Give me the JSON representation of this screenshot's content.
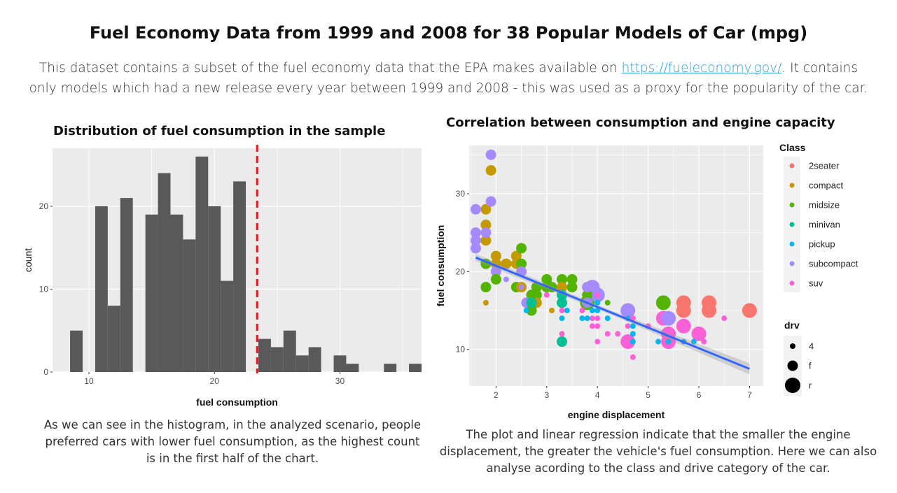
{
  "page": {
    "title": "Fuel Economy Data from 1999 and 2008 for 38 Popular Models of Car (mpg)",
    "intro_before_link": "This dataset contains a subset of the fuel economy data that the EPA makes available on ",
    "intro_link": "https://fueleconomy.gov/",
    "intro_after_link": ". It contains only models which had a new release every year between 1999 and 2008 - this was used as a proxy for the popularity of the car."
  },
  "histogram": {
    "caption": "As we can see in the histogram, in the analyzed scenario, people preferred cars with lower fuel consumption, as the highest count is in the first half of the chart."
  },
  "scatter": {
    "caption": "The plot and linear regression indicate that the smaller the engine displacement, the greater the vehicle's fuel consumption. Here we can also analyse acording to the class and drive category of the car."
  },
  "colors": {
    "panel_bg": "#ebebeb",
    "grid": "#ffffff",
    "bar_fill": "#595959",
    "vline": "#e31a1c",
    "regression": "#3366ff",
    "link": "#2a9fd6"
  },
  "chart_data": [
    {
      "type": "bar",
      "title": "Distribution of fuel consumption in the sample",
      "xlabel": "fuel consumption",
      "ylabel": "count",
      "xlim": [
        7.1,
        36.5
      ],
      "ylim": [
        0,
        27
      ],
      "xticks": [
        10,
        20,
        30
      ],
      "yticks": [
        0,
        10,
        20
      ],
      "bin_width": 1,
      "bins": [
        {
          "x": 9,
          "count": 5
        },
        {
          "x": 10,
          "count": 0
        },
        {
          "x": 11,
          "count": 20
        },
        {
          "x": 12,
          "count": 8
        },
        {
          "x": 13,
          "count": 21
        },
        {
          "x": 14,
          "count": 0
        },
        {
          "x": 15,
          "count": 19
        },
        {
          "x": 16,
          "count": 24
        },
        {
          "x": 17,
          "count": 19
        },
        {
          "x": 18,
          "count": 16
        },
        {
          "x": 19,
          "count": 26
        },
        {
          "x": 20,
          "count": 20
        },
        {
          "x": 21,
          "count": 11
        },
        {
          "x": 22,
          "count": 23
        },
        {
          "x": 23,
          "count": 0
        },
        {
          "x": 24,
          "count": 4
        },
        {
          "x": 25,
          "count": 3
        },
        {
          "x": 26,
          "count": 5
        },
        {
          "x": 27,
          "count": 2
        },
        {
          "x": 28,
          "count": 3
        },
        {
          "x": 29,
          "count": 0
        },
        {
          "x": 30,
          "count": 2
        },
        {
          "x": 31,
          "count": 1
        },
        {
          "x": 34,
          "count": 1
        },
        {
          "x": 36,
          "count": 1
        }
      ],
      "reference_line": {
        "x": 23.4,
        "style": "dashed",
        "color": "#e31a1c"
      },
      "grid": true
    },
    {
      "type": "scatter",
      "title": "Correlation between consumption and engine capacity",
      "xlabel": "engine displacement",
      "ylabel": "fuel consumption",
      "xlim": [
        1.47,
        7.27
      ],
      "ylim": [
        5.3,
        36.2
      ],
      "xticks": [
        2,
        3,
        4,
        5,
        6,
        7
      ],
      "yticks": [
        10,
        20,
        30
      ],
      "grid": true,
      "regression": {
        "x": [
          1.6,
          7.0
        ],
        "y": [
          21.8,
          7.5
        ],
        "se_band": true
      },
      "legend_color": {
        "title": "Class",
        "position": "right",
        "entries": [
          {
            "label": "2seater",
            "color": "#f8766d"
          },
          {
            "label": "compact",
            "color": "#c49a00"
          },
          {
            "label": "midsize",
            "color": "#53b400"
          },
          {
            "label": "minivan",
            "color": "#00c094"
          },
          {
            "label": "pickup",
            "color": "#00b6eb"
          },
          {
            "label": "subcompact",
            "color": "#a58aff"
          },
          {
            "label": "suv",
            "color": "#fb61d7"
          }
        ]
      },
      "legend_size": {
        "title": "drv",
        "position": "right",
        "entries": [
          {
            "label": "4",
            "size": 1
          },
          {
            "label": "f",
            "size": 2
          },
          {
            "label": "r",
            "size": 3
          }
        ]
      },
      "points": [
        {
          "x": 1.8,
          "y": 24,
          "class": "compact",
          "drv": "f"
        },
        {
          "x": 1.8,
          "y": 26,
          "class": "compact",
          "drv": "f"
        },
        {
          "x": 1.8,
          "y": 28,
          "class": "compact",
          "drv": "f"
        },
        {
          "x": 1.9,
          "y": 33,
          "class": "compact",
          "drv": "f"
        },
        {
          "x": 1.9,
          "y": 35,
          "class": "subcompact",
          "drv": "f"
        },
        {
          "x": 1.9,
          "y": 29,
          "class": "subcompact",
          "drv": "f"
        },
        {
          "x": 1.6,
          "y": 28,
          "class": "subcompact",
          "drv": "f"
        },
        {
          "x": 1.6,
          "y": 25,
          "class": "subcompact",
          "drv": "f"
        },
        {
          "x": 1.6,
          "y": 23,
          "class": "subcompact",
          "drv": "f"
        },
        {
          "x": 1.6,
          "y": 24,
          "class": "subcompact",
          "drv": "f"
        },
        {
          "x": 1.8,
          "y": 25,
          "class": "subcompact",
          "drv": "f"
        },
        {
          "x": 2.0,
          "y": 22,
          "class": "compact",
          "drv": "f"
        },
        {
          "x": 2.0,
          "y": 21,
          "class": "compact",
          "drv": "f"
        },
        {
          "x": 2.0,
          "y": 20,
          "class": "subcompact",
          "drv": "f"
        },
        {
          "x": 1.8,
          "y": 21,
          "class": "midsize",
          "drv": "f"
        },
        {
          "x": 1.8,
          "y": 18,
          "class": "midsize",
          "drv": "f"
        },
        {
          "x": 2.0,
          "y": 19,
          "class": "midsize",
          "drv": "f"
        },
        {
          "x": 1.8,
          "y": 16,
          "class": "compact",
          "drv": "4"
        },
        {
          "x": 2.2,
          "y": 21,
          "class": "compact",
          "drv": "f"
        },
        {
          "x": 2.4,
          "y": 22,
          "class": "compact",
          "drv": "f"
        },
        {
          "x": 2.4,
          "y": 21,
          "class": "compact",
          "drv": "f"
        },
        {
          "x": 2.5,
          "y": 23,
          "class": "midsize",
          "drv": "f"
        },
        {
          "x": 2.5,
          "y": 21,
          "class": "midsize",
          "drv": "f"
        },
        {
          "x": 2.5,
          "y": 20,
          "class": "subcompact",
          "drv": "f"
        },
        {
          "x": 2.2,
          "y": 19,
          "class": "subcompact",
          "drv": "4"
        },
        {
          "x": 2.4,
          "y": 18,
          "class": "midsize",
          "drv": "f"
        },
        {
          "x": 2.5,
          "y": 18,
          "class": "compact",
          "drv": "f"
        },
        {
          "x": 2.5,
          "y": 18,
          "class": "subcompact",
          "drv": "4"
        },
        {
          "x": 2.8,
          "y": 18,
          "class": "midsize",
          "drv": "f"
        },
        {
          "x": 2.8,
          "y": 17,
          "class": "midsize",
          "drv": "f"
        },
        {
          "x": 3.0,
          "y": 18,
          "class": "midsize",
          "drv": "f"
        },
        {
          "x": 3.0,
          "y": 19,
          "class": "midsize",
          "drv": "f"
        },
        {
          "x": 3.1,
          "y": 18,
          "class": "midsize",
          "drv": "f"
        },
        {
          "x": 3.3,
          "y": 19,
          "class": "midsize",
          "drv": "f"
        },
        {
          "x": 3.5,
          "y": 19,
          "class": "midsize",
          "drv": "f"
        },
        {
          "x": 3.3,
          "y": 18,
          "class": "compact",
          "drv": "f"
        },
        {
          "x": 3.5,
          "y": 18,
          "class": "midsize",
          "drv": "f"
        },
        {
          "x": 3.8,
          "y": 18,
          "class": "midsize",
          "drv": "f"
        },
        {
          "x": 3.8,
          "y": 17,
          "class": "midsize",
          "drv": "f"
        },
        {
          "x": 3.8,
          "y": 16,
          "class": "subcompact",
          "drv": "f"
        },
        {
          "x": 3.8,
          "y": 18,
          "class": "subcompact",
          "drv": "f"
        },
        {
          "x": 4.0,
          "y": 17,
          "class": "subcompact",
          "drv": "f"
        },
        {
          "x": 2.7,
          "y": 17,
          "class": "midsize",
          "drv": "f"
        },
        {
          "x": 2.7,
          "y": 16,
          "class": "subcompact",
          "drv": "f"
        },
        {
          "x": 2.6,
          "y": 16,
          "class": "subcompact",
          "drv": "f"
        },
        {
          "x": 2.8,
          "y": 16,
          "class": "compact",
          "drv": "f"
        },
        {
          "x": 2.7,
          "y": 15,
          "class": "midsize",
          "drv": "f"
        },
        {
          "x": 2.6,
          "y": 15,
          "class": "pickup",
          "drv": "4"
        },
        {
          "x": 2.7,
          "y": 16,
          "class": "minivan",
          "drv": "f"
        },
        {
          "x": 3.0,
          "y": 17,
          "class": "suv",
          "drv": "4"
        },
        {
          "x": 3.1,
          "y": 15,
          "class": "compact",
          "drv": "4"
        },
        {
          "x": 3.3,
          "y": 17,
          "class": "minivan",
          "drv": "f"
        },
        {
          "x": 3.3,
          "y": 16,
          "class": "minivan",
          "drv": "f"
        },
        {
          "x": 3.3,
          "y": 11,
          "class": "minivan",
          "drv": "f"
        },
        {
          "x": 3.4,
          "y": 15,
          "class": "pickup",
          "drv": "4"
        },
        {
          "x": 3.3,
          "y": 15,
          "class": "suv",
          "drv": "4"
        },
        {
          "x": 3.3,
          "y": 14,
          "class": "pickup",
          "drv": "4"
        },
        {
          "x": 3.3,
          "y": 12,
          "class": "suv",
          "drv": "4"
        },
        {
          "x": 3.7,
          "y": 15,
          "class": "suv",
          "drv": "4"
        },
        {
          "x": 3.7,
          "y": 14,
          "class": "pickup",
          "drv": "4"
        },
        {
          "x": 3.9,
          "y": 15,
          "class": "pickup",
          "drv": "4"
        },
        {
          "x": 3.9,
          "y": 14,
          "class": "suv",
          "drv": "4"
        },
        {
          "x": 3.9,
          "y": 13,
          "class": "suv",
          "drv": "4"
        },
        {
          "x": 3.8,
          "y": 14,
          "class": "pickup",
          "drv": "4"
        },
        {
          "x": 4.0,
          "y": 15,
          "class": "pickup",
          "drv": "4"
        },
        {
          "x": 4.0,
          "y": 16,
          "class": "pickup",
          "drv": "4"
        },
        {
          "x": 4.0,
          "y": 17,
          "class": "suv",
          "drv": "4"
        },
        {
          "x": 4.0,
          "y": 13,
          "class": "suv",
          "drv": "4"
        },
        {
          "x": 4.0,
          "y": 11,
          "class": "suv",
          "drv": "4"
        },
        {
          "x": 4.0,
          "y": 14,
          "class": "suv",
          "drv": "4"
        },
        {
          "x": 4.2,
          "y": 14,
          "class": "pickup",
          "drv": "4"
        },
        {
          "x": 4.2,
          "y": 12,
          "class": "suv",
          "drv": "4"
        },
        {
          "x": 4.2,
          "y": 16,
          "class": "midsize",
          "drv": "4"
        },
        {
          "x": 3.8,
          "y": 16,
          "class": "midsize",
          "drv": "r"
        },
        {
          "x": 3.9,
          "y": 18,
          "class": "subcompact",
          "drv": "r"
        },
        {
          "x": 4.0,
          "y": 17,
          "class": "subcompact",
          "drv": "r"
        },
        {
          "x": 4.4,
          "y": 12,
          "class": "suv",
          "drv": "4"
        },
        {
          "x": 4.6,
          "y": 15,
          "class": "subcompact",
          "drv": "r"
        },
        {
          "x": 4.6,
          "y": 11,
          "class": "suv",
          "drv": "r"
        },
        {
          "x": 4.6,
          "y": 13,
          "class": "suv",
          "drv": "4"
        },
        {
          "x": 4.6,
          "y": 14,
          "class": "pickup",
          "drv": "4"
        },
        {
          "x": 4.7,
          "y": 12,
          "class": "pickup",
          "drv": "4"
        },
        {
          "x": 4.7,
          "y": 13,
          "class": "pickup",
          "drv": "4"
        },
        {
          "x": 4.7,
          "y": 9,
          "class": "suv",
          "drv": "4"
        },
        {
          "x": 4.7,
          "y": 11,
          "class": "pickup",
          "drv": "4"
        },
        {
          "x": 4.7,
          "y": 14,
          "class": "suv",
          "drv": "4"
        },
        {
          "x": 5.0,
          "y": 13,
          "class": "suv",
          "drv": "4"
        },
        {
          "x": 5.2,
          "y": 11,
          "class": "pickup",
          "drv": "4"
        },
        {
          "x": 5.3,
          "y": 16,
          "class": "midsize",
          "drv": "r"
        },
        {
          "x": 5.3,
          "y": 14,
          "class": "suv",
          "drv": "r"
        },
        {
          "x": 5.4,
          "y": 12,
          "class": "suv",
          "drv": "r"
        },
        {
          "x": 5.4,
          "y": 11,
          "class": "suv",
          "drv": "r"
        },
        {
          "x": 5.4,
          "y": 14,
          "class": "subcompact",
          "drv": "r"
        },
        {
          "x": 5.4,
          "y": 11,
          "class": "pickup",
          "drv": "4"
        },
        {
          "x": 5.7,
          "y": 16,
          "class": "2seater",
          "drv": "r"
        },
        {
          "x": 5.7,
          "y": 15,
          "class": "2seater",
          "drv": "r"
        },
        {
          "x": 5.7,
          "y": 13,
          "class": "suv",
          "drv": "r"
        },
        {
          "x": 5.7,
          "y": 11,
          "class": "pickup",
          "drv": "4"
        },
        {
          "x": 5.9,
          "y": 11,
          "class": "pickup",
          "drv": "4"
        },
        {
          "x": 6.0,
          "y": 12,
          "class": "suv",
          "drv": "r"
        },
        {
          "x": 6.1,
          "y": 11,
          "class": "suv",
          "drv": "4"
        },
        {
          "x": 6.2,
          "y": 16,
          "class": "2seater",
          "drv": "r"
        },
        {
          "x": 6.2,
          "y": 15,
          "class": "2seater",
          "drv": "r"
        },
        {
          "x": 6.5,
          "y": 14,
          "class": "suv",
          "drv": "4"
        },
        {
          "x": 7.0,
          "y": 15,
          "class": "2seater",
          "drv": "r"
        }
      ]
    }
  ]
}
